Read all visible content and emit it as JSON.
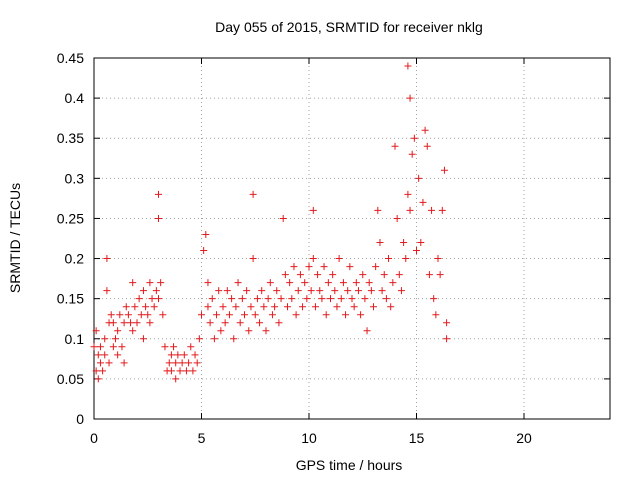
{
  "chart_data": {
    "type": "scatter",
    "title": "Day 055 of 2015, SRMTID for receiver nklg",
    "xlabel": "GPS time / hours",
    "ylabel": "SRMTID / TECUs",
    "xlim": [
      0,
      24
    ],
    "ylim": [
      0,
      0.45
    ],
    "xticks": [
      0,
      5,
      10,
      15,
      20
    ],
    "yticks": [
      0,
      0.05,
      0.1,
      0.15,
      0.2,
      0.25,
      0.3,
      0.35,
      0.4,
      0.45
    ],
    "xtick_labels": [
      "0",
      "5",
      "10",
      "15",
      "20"
    ],
    "ytick_labels": [
      "0",
      "0.05",
      "0.1",
      "0.15",
      "0.2",
      "0.25",
      "0.3",
      "0.35",
      "0.4",
      "0.45"
    ],
    "grid": true,
    "marker": "plus",
    "color": "#e41a1c",
    "series": [
      {
        "x": [
          0.0,
          0.1,
          0.1,
          0.2,
          0.2,
          0.3,
          0.3,
          0.4,
          0.5,
          0.5,
          0.6,
          0.6,
          0.7,
          0.7,
          0.8,
          0.9,
          0.9,
          1.0,
          1.1,
          1.1,
          1.2,
          1.3,
          1.4,
          1.4,
          1.5,
          1.6,
          1.7,
          1.8,
          1.8,
          1.9,
          2.0,
          2.1,
          2.2,
          2.3,
          2.3,
          2.4,
          2.5,
          2.6,
          2.6,
          2.7,
          2.8,
          2.9,
          3.0,
          3.0,
          3.0,
          3.1,
          3.2,
          3.3,
          3.4,
          3.5,
          3.6,
          3.6,
          3.7,
          3.8,
          3.8,
          3.9,
          4.0,
          4.1,
          4.2,
          4.3,
          4.4,
          4.5,
          4.6,
          4.7,
          4.8,
          4.9,
          5.0,
          5.1,
          5.2,
          5.3,
          5.3,
          5.4,
          5.5,
          5.6,
          5.7,
          5.8,
          5.9,
          6.0,
          6.1,
          6.2,
          6.3,
          6.4,
          6.5,
          6.6,
          6.7,
          6.8,
          6.9,
          7.0,
          7.1,
          7.2,
          7.3,
          7.4,
          7.4,
          7.5,
          7.6,
          7.7,
          7.8,
          7.9,
          8.0,
          8.1,
          8.2,
          8.3,
          8.4,
          8.5,
          8.6,
          8.7,
          8.8,
          8.9,
          9.0,
          9.1,
          9.2,
          9.3,
          9.4,
          9.5,
          9.6,
          9.7,
          9.8,
          9.9,
          10.0,
          10.1,
          10.2,
          10.2,
          10.3,
          10.4,
          10.5,
          10.6,
          10.7,
          10.8,
          10.9,
          11.0,
          11.1,
          11.2,
          11.3,
          11.4,
          11.5,
          11.6,
          11.7,
          11.8,
          11.9,
          12.0,
          12.1,
          12.2,
          12.3,
          12.4,
          12.5,
          12.6,
          12.7,
          12.8,
          12.9,
          13.0,
          13.1,
          13.2,
          13.3,
          13.4,
          13.5,
          13.6,
          13.7,
          13.8,
          13.9,
          14.0,
          14.1,
          14.2,
          14.3,
          14.4,
          14.5,
          14.6,
          14.6,
          14.7,
          14.7,
          14.8,
          14.9,
          15.0,
          15.1,
          15.2,
          15.3,
          15.4,
          15.5,
          15.6,
          15.7,
          15.8,
          15.9,
          16.0,
          16.1,
          16.2,
          16.3,
          16.4,
          16.4
        ],
        "y": [
          0.09,
          0.06,
          0.11,
          0.05,
          0.08,
          0.07,
          0.09,
          0.06,
          0.1,
          0.08,
          0.2,
          0.16,
          0.12,
          0.07,
          0.13,
          0.09,
          0.12,
          0.1,
          0.11,
          0.08,
          0.13,
          0.09,
          0.12,
          0.07,
          0.14,
          0.13,
          0.12,
          0.17,
          0.11,
          0.14,
          0.12,
          0.15,
          0.13,
          0.16,
          0.1,
          0.14,
          0.13,
          0.12,
          0.17,
          0.15,
          0.14,
          0.16,
          0.28,
          0.25,
          0.15,
          0.17,
          0.13,
          0.09,
          0.06,
          0.07,
          0.08,
          0.06,
          0.09,
          0.07,
          0.05,
          0.08,
          0.06,
          0.07,
          0.08,
          0.06,
          0.07,
          0.09,
          0.06,
          0.08,
          0.07,
          0.1,
          0.13,
          0.21,
          0.23,
          0.17,
          0.14,
          0.12,
          0.15,
          0.1,
          0.13,
          0.16,
          0.11,
          0.14,
          0.12,
          0.16,
          0.13,
          0.15,
          0.1,
          0.14,
          0.17,
          0.12,
          0.15,
          0.13,
          0.16,
          0.11,
          0.14,
          0.28,
          0.2,
          0.13,
          0.15,
          0.12,
          0.16,
          0.14,
          0.11,
          0.15,
          0.17,
          0.13,
          0.14,
          0.16,
          0.12,
          0.15,
          0.25,
          0.18,
          0.14,
          0.17,
          0.15,
          0.19,
          0.13,
          0.16,
          0.18,
          0.14,
          0.17,
          0.15,
          0.19,
          0.16,
          0.26,
          0.2,
          0.14,
          0.18,
          0.16,
          0.15,
          0.19,
          0.13,
          0.17,
          0.15,
          0.18,
          0.16,
          0.14,
          0.2,
          0.15,
          0.17,
          0.13,
          0.16,
          0.19,
          0.15,
          0.14,
          0.17,
          0.16,
          0.13,
          0.18,
          0.15,
          0.11,
          0.17,
          0.16,
          0.14,
          0.19,
          0.26,
          0.22,
          0.16,
          0.18,
          0.15,
          0.2,
          0.14,
          0.17,
          0.34,
          0.25,
          0.18,
          0.16,
          0.22,
          0.2,
          0.28,
          0.44,
          0.4,
          0.26,
          0.33,
          0.35,
          0.21,
          0.3,
          0.22,
          0.27,
          0.36,
          0.34,
          0.18,
          0.26,
          0.15,
          0.13,
          0.2,
          0.18,
          0.26,
          0.31,
          0.12,
          0.1
        ]
      }
    ]
  }
}
